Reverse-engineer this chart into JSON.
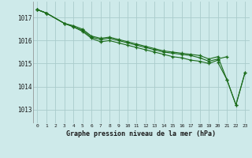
{
  "bg_color": "#ceeaea",
  "grid_color": "#aacccc",
  "line_color": "#1a6b1a",
  "title": "Graphe pression niveau de la mer (hPa)",
  "xlim": [
    -0.5,
    23.5
  ],
  "ylim": [
    1012.4,
    1017.7
  ],
  "yticks": [
    1013,
    1014,
    1015,
    1016,
    1017
  ],
  "xticks": [
    0,
    1,
    2,
    3,
    4,
    5,
    6,
    7,
    8,
    9,
    10,
    11,
    12,
    13,
    14,
    15,
    16,
    17,
    18,
    19,
    20,
    21,
    22,
    23
  ],
  "series": [
    {
      "x": [
        0,
        1
      ],
      "y": [
        1017.35,
        1017.2
      ]
    },
    {
      "x": [
        0,
        1,
        3,
        4,
        5,
        6,
        7,
        8,
        9,
        10,
        11,
        12,
        13,
        14,
        15,
        16,
        17,
        18,
        19,
        20
      ],
      "y": [
        1017.35,
        1017.2,
        1016.75,
        1016.6,
        1016.4,
        1016.1,
        1015.95,
        1016.0,
        1015.9,
        1015.8,
        1015.7,
        1015.6,
        1015.5,
        1015.4,
        1015.3,
        1015.25,
        1015.15,
        1015.1,
        1015.0,
        1015.15
      ]
    },
    {
      "x": [
        0,
        1,
        3,
        4,
        5,
        6,
        7,
        8,
        9,
        10,
        11,
        12,
        13,
        14,
        15,
        16,
        17,
        18,
        19,
        20,
        21
      ],
      "y": [
        1017.35,
        1017.2,
        1016.75,
        1016.6,
        1016.45,
        1016.15,
        1016.05,
        1016.1,
        1016.0,
        1015.9,
        1015.8,
        1015.7,
        1015.6,
        1015.5,
        1015.45,
        1015.4,
        1015.35,
        1015.25,
        1015.1,
        1015.2,
        1015.3
      ]
    },
    {
      "x": [
        0,
        1,
        3,
        4,
        5,
        6,
        7,
        8,
        9,
        10,
        11,
        12,
        13,
        14,
        15,
        16,
        17,
        18,
        19,
        20,
        21,
        22,
        23
      ],
      "y": [
        1017.35,
        1017.2,
        1016.75,
        1016.65,
        1016.5,
        1016.2,
        1016.1,
        1016.15,
        1016.05,
        1015.95,
        1015.85,
        1015.75,
        1015.65,
        1015.55,
        1015.5,
        1015.45,
        1015.4,
        1015.35,
        1015.2,
        1015.3,
        1014.3,
        1013.2,
        1014.6
      ]
    },
    {
      "x": [
        20,
        21,
        22,
        23
      ],
      "y": [
        1015.05,
        1014.3,
        1013.2,
        1014.6
      ]
    }
  ]
}
